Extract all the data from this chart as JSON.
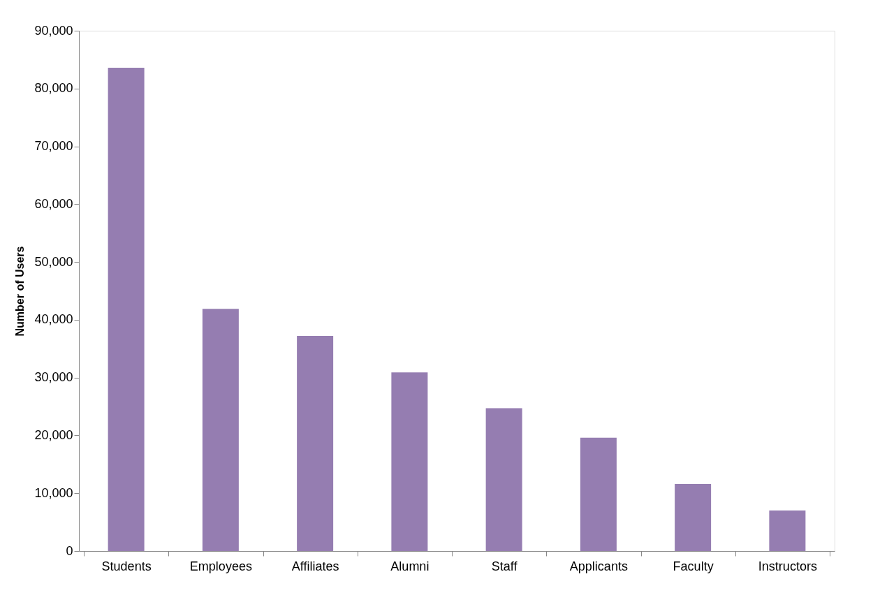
{
  "chart_data": {
    "type": "bar",
    "ylabel": "Number of Users",
    "categories": [
      "Students",
      "Employees",
      "Affiliates",
      "Alumni",
      "Staff",
      "Applicants",
      "Faculty",
      "Instructors"
    ],
    "values": [
      83600,
      41900,
      37200,
      30900,
      24700,
      19600,
      11600,
      7000
    ],
    "color": "#957db1",
    "ylim": [
      0,
      90000
    ],
    "yticks": [
      0,
      {
        "value": 10000,
        "label": "10,000"
      },
      {
        "value": 20000,
        "label": "20,000"
      },
      {
        "value": 30000,
        "label": "30,000"
      },
      {
        "value": 40000,
        "label": "40,000"
      },
      {
        "value": 50000,
        "label": "50,000"
      },
      {
        "value": 60000,
        "label": "60,000"
      },
      {
        "value": 70000,
        "label": "70,000"
      },
      {
        "value": 80000,
        "label": "80,000"
      },
      {
        "value": 90000,
        "label": "90,000"
      }
    ],
    "grid": false
  }
}
